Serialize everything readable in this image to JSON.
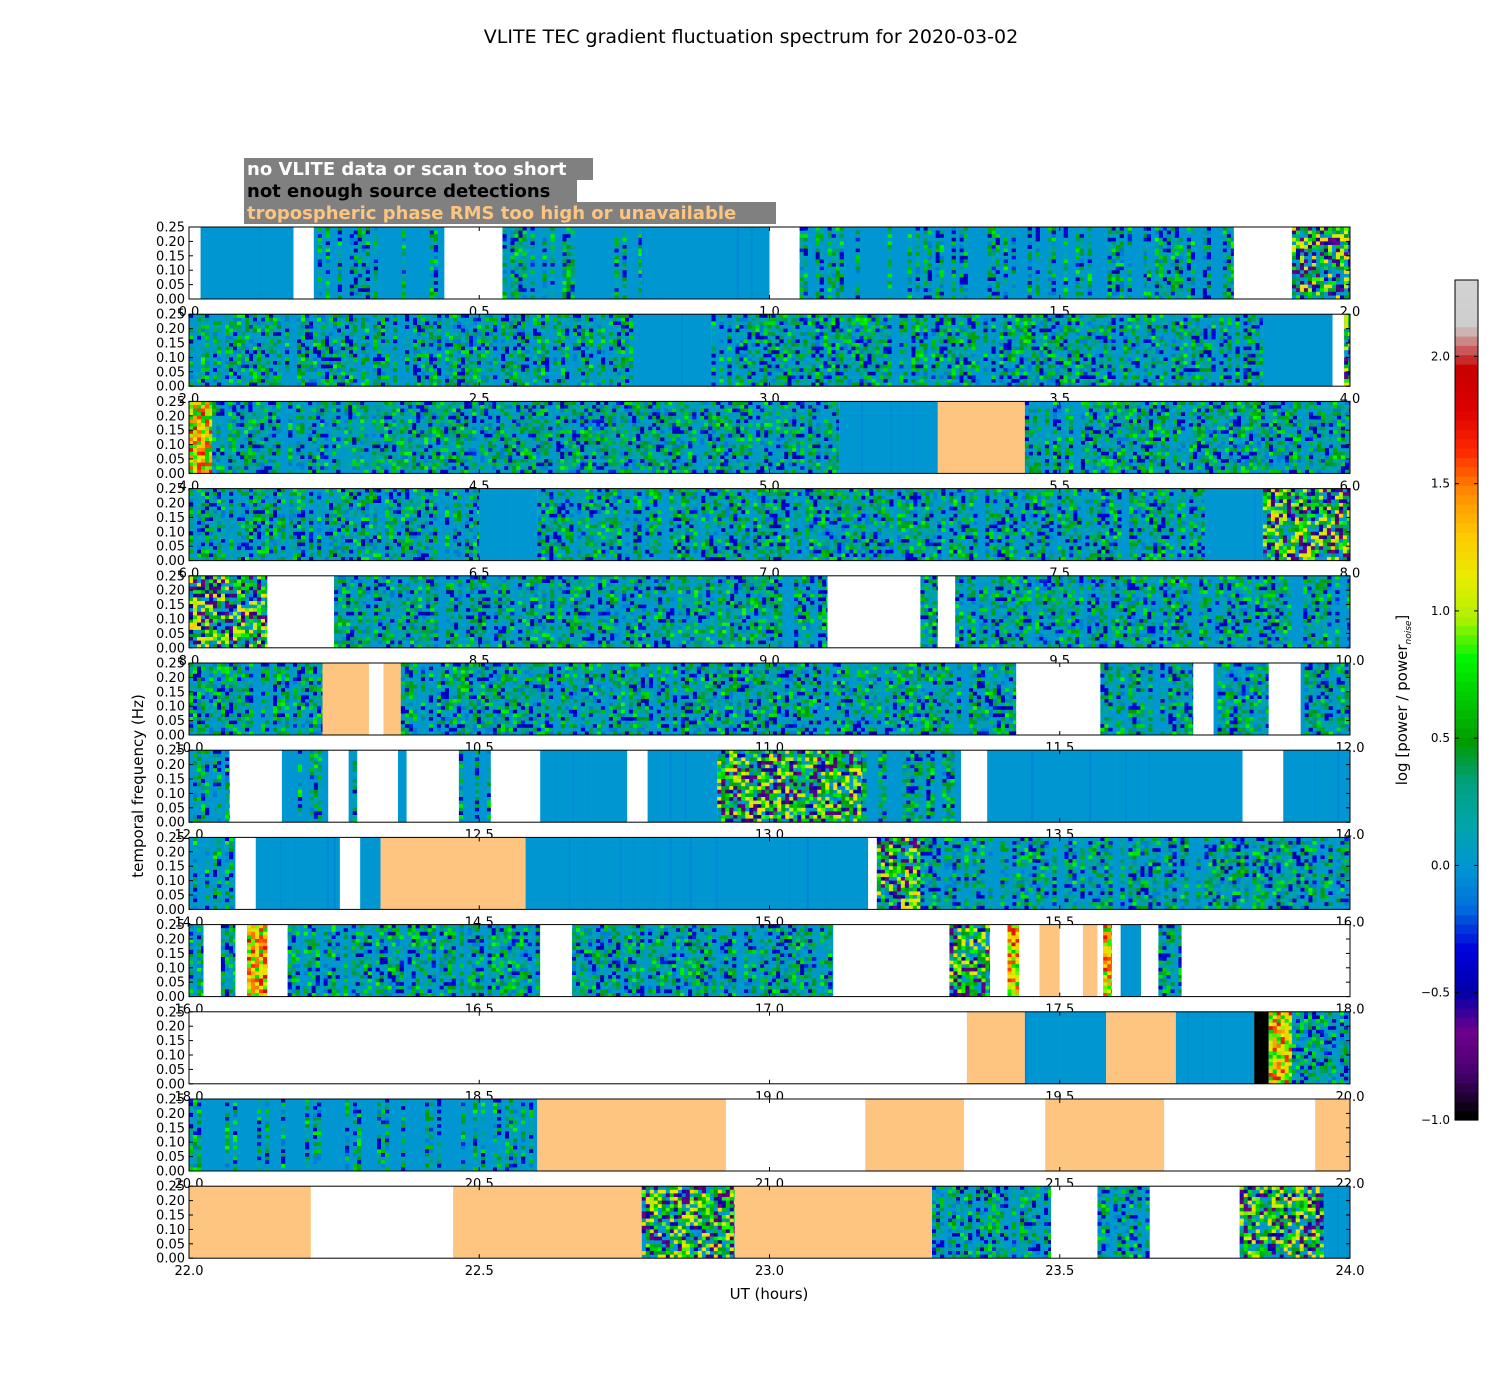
{
  "chart_data": {
    "type": "heatmap",
    "title": "VLITE TEC gradient fluctuation spectrum for 2020-03-02",
    "xlabel": "UT (hours)",
    "ylabel": "temporal frequency (Hz)",
    "ylim": [
      0,
      0.25
    ],
    "yticks": [
      "0.00",
      "0.05",
      "0.10",
      "0.15",
      "0.20",
      "0.25"
    ],
    "panel_hours": 2.0,
    "legend": {
      "placement": "top-left",
      "items": [
        {
          "key": "nodata",
          "label": "no VLITE data or scan too short",
          "text_color": "#ffffff",
          "box_color": "#808080"
        },
        {
          "key": "nodet",
          "label": "not enough source detections",
          "text_color": "#000000",
          "box_color": "#808080"
        },
        {
          "key": "tropo",
          "label": "tropospheric phase RMS too high or unavailable",
          "text_color": "#fdc57f",
          "box_color": "#808080"
        }
      ]
    },
    "colorbar": {
      "label": "log [power / power",
      "label_subscript": "noise",
      "label_close": "]",
      "min": -1.0,
      "max": 2.3,
      "ticks": [
        "−1.0",
        "−0.5",
        "0.0",
        "0.5",
        "1.0",
        "1.5",
        "2.0"
      ],
      "tick_values": [
        -1.0,
        -0.5,
        0.0,
        0.5,
        1.0,
        1.5,
        2.0
      ],
      "colormap": "nipy_spectral"
    },
    "status_colors": {
      "nodata": "#ffffff",
      "tropo": "#fdc57f",
      "nodet": "#000000",
      "quiet": "#0096d2"
    },
    "panels": [
      {
        "start": 0,
        "end": 2,
        "xticks": [
          "0.0",
          "0.5",
          "1.0",
          "1.5",
          "2.0"
        ],
        "segments": [
          [
            0.0,
            0.02,
            "nodata"
          ],
          [
            0.02,
            0.18,
            "quiet"
          ],
          [
            0.18,
            0.215,
            "nodata"
          ],
          [
            0.215,
            0.44,
            "mixq"
          ],
          [
            0.44,
            0.54,
            "nodata"
          ],
          [
            0.54,
            0.78,
            "mixq"
          ],
          [
            0.78,
            1.0,
            "quiet"
          ],
          [
            1.0,
            1.052,
            "nodata"
          ],
          [
            1.052,
            1.65,
            "mixq"
          ],
          [
            1.65,
            1.8,
            "mixq"
          ],
          [
            1.8,
            1.9,
            "nodata"
          ],
          [
            1.9,
            2.0,
            "active"
          ]
        ]
      },
      {
        "start": 2,
        "end": 4,
        "xticks": [
          "2.0",
          "2.5",
          "3.0",
          "3.5",
          "4.0"
        ],
        "segments": [
          [
            0.0,
            0.77,
            "mix"
          ],
          [
            0.77,
            0.9,
            "quiet"
          ],
          [
            0.9,
            1.85,
            "mix"
          ],
          [
            1.85,
            1.97,
            "quiet"
          ],
          [
            1.97,
            1.99,
            "nodata"
          ],
          [
            1.99,
            2.0,
            "active"
          ]
        ]
      },
      {
        "start": 4,
        "end": 6,
        "xticks": [
          "4.0",
          "4.5",
          "5.0",
          "5.5",
          "6.0"
        ],
        "segments": [
          [
            0.0,
            0.04,
            "hot"
          ],
          [
            0.04,
            1.12,
            "mix"
          ],
          [
            1.12,
            1.29,
            "quiet"
          ],
          [
            1.29,
            1.44,
            "tropo"
          ],
          [
            1.44,
            2.0,
            "mix"
          ]
        ]
      },
      {
        "start": 6,
        "end": 8,
        "xticks": [
          "6.0",
          "6.5",
          "7.0",
          "7.5",
          "8.0"
        ],
        "segments": [
          [
            0.0,
            0.5,
            "mix"
          ],
          [
            0.5,
            0.6,
            "quiet"
          ],
          [
            0.6,
            1.75,
            "mix"
          ],
          [
            1.75,
            1.85,
            "quiet"
          ],
          [
            1.85,
            2.0,
            "active"
          ]
        ]
      },
      {
        "start": 8,
        "end": 10,
        "xticks": [
          "8.0",
          "8.5",
          "9.0",
          "9.5",
          "10.0"
        ],
        "segments": [
          [
            0.0,
            0.135,
            "active"
          ],
          [
            0.135,
            0.25,
            "nodata"
          ],
          [
            0.25,
            1.1,
            "mix"
          ],
          [
            1.1,
            1.26,
            "nodata"
          ],
          [
            1.26,
            1.29,
            "mix"
          ],
          [
            1.29,
            1.32,
            "nodata"
          ],
          [
            1.32,
            2.0,
            "mix"
          ]
        ]
      },
      {
        "start": 10,
        "end": 12,
        "xticks": [
          "10.0",
          "10.5",
          "11.0",
          "11.5",
          "12.0"
        ],
        "segments": [
          [
            0.0,
            0.23,
            "mix"
          ],
          [
            0.23,
            0.31,
            "tropo"
          ],
          [
            0.31,
            0.335,
            "nodata"
          ],
          [
            0.335,
            0.365,
            "tropo"
          ],
          [
            0.365,
            1.425,
            "mix"
          ],
          [
            1.425,
            1.57,
            "nodata"
          ],
          [
            1.57,
            1.73,
            "mix"
          ],
          [
            1.73,
            1.765,
            "nodata"
          ],
          [
            1.765,
            1.86,
            "mix"
          ],
          [
            1.86,
            1.915,
            "nodata"
          ],
          [
            1.915,
            2.0,
            "mix"
          ]
        ]
      },
      {
        "start": 12,
        "end": 14,
        "xticks": [
          "12.0",
          "12.5",
          "13.0",
          "13.5",
          "14.0"
        ],
        "segments": [
          [
            0.0,
            0.07,
            "mixq"
          ],
          [
            0.07,
            0.16,
            "nodata"
          ],
          [
            0.16,
            0.24,
            "mixq"
          ],
          [
            0.24,
            0.275,
            "nodata"
          ],
          [
            0.275,
            0.29,
            "mixq"
          ],
          [
            0.29,
            0.36,
            "nodata"
          ],
          [
            0.36,
            0.375,
            "mixq"
          ],
          [
            0.375,
            0.465,
            "nodata"
          ],
          [
            0.465,
            0.52,
            "mixq"
          ],
          [
            0.52,
            0.605,
            "nodata"
          ],
          [
            0.605,
            0.755,
            "quiet"
          ],
          [
            0.755,
            0.79,
            "nodata"
          ],
          [
            0.79,
            0.91,
            "quiet"
          ],
          [
            0.91,
            1.16,
            "active"
          ],
          [
            1.16,
            1.33,
            "mixq"
          ],
          [
            1.33,
            1.375,
            "nodata"
          ],
          [
            1.375,
            1.815,
            "quiet"
          ],
          [
            1.815,
            1.885,
            "nodata"
          ],
          [
            1.885,
            2.0,
            "quiet"
          ]
        ]
      },
      {
        "start": 14,
        "end": 16,
        "xticks": [
          "14.0",
          "14.5",
          "15.0",
          "15.5",
          "16.0"
        ],
        "segments": [
          [
            0.0,
            0.08,
            "mixq"
          ],
          [
            0.08,
            0.115,
            "nodata"
          ],
          [
            0.115,
            0.26,
            "quiet"
          ],
          [
            0.26,
            0.295,
            "nodata"
          ],
          [
            0.295,
            0.33,
            "quiet"
          ],
          [
            0.33,
            0.58,
            "tropo"
          ],
          [
            0.58,
            1.17,
            "quiet"
          ],
          [
            1.17,
            1.185,
            "nodata"
          ],
          [
            1.185,
            1.26,
            "active"
          ],
          [
            1.26,
            2.0,
            "mix"
          ]
        ]
      },
      {
        "start": 16,
        "end": 18,
        "xticks": [
          "16.0",
          "16.5",
          "17.0",
          "17.5",
          "18.0"
        ],
        "segments": [
          [
            0.0,
            0.025,
            "mix"
          ],
          [
            0.025,
            0.055,
            "nodata"
          ],
          [
            0.055,
            0.08,
            "mix"
          ],
          [
            0.08,
            0.1,
            "nodata"
          ],
          [
            0.1,
            0.135,
            "hot"
          ],
          [
            0.135,
            0.17,
            "nodata"
          ],
          [
            0.17,
            0.605,
            "mix"
          ],
          [
            0.605,
            0.66,
            "nodata"
          ],
          [
            0.66,
            1.11,
            "mix"
          ],
          [
            1.11,
            1.31,
            "nodata"
          ],
          [
            1.31,
            1.38,
            "active"
          ],
          [
            1.38,
            1.41,
            "nodata"
          ],
          [
            1.41,
            1.43,
            "hot"
          ],
          [
            1.43,
            1.465,
            "nodata"
          ],
          [
            1.465,
            1.5,
            "tropo"
          ],
          [
            1.5,
            1.54,
            "nodata"
          ],
          [
            1.54,
            1.565,
            "tropo"
          ],
          [
            1.565,
            1.575,
            "nodata"
          ],
          [
            1.575,
            1.59,
            "hot"
          ],
          [
            1.59,
            1.605,
            "nodata"
          ],
          [
            1.605,
            1.64,
            "quiet"
          ],
          [
            1.64,
            1.67,
            "nodata"
          ],
          [
            1.67,
            1.71,
            "mix"
          ],
          [
            1.71,
            2.0,
            "nodata"
          ]
        ]
      },
      {
        "start": 18,
        "end": 20,
        "xticks": [
          "18.0",
          "18.5",
          "19.0",
          "19.5",
          "20.0"
        ],
        "segments": [
          [
            0.0,
            1.34,
            "nodata"
          ],
          [
            1.34,
            1.44,
            "tropo"
          ],
          [
            1.44,
            1.58,
            "quiet"
          ],
          [
            1.58,
            1.7,
            "tropo"
          ],
          [
            1.7,
            1.835,
            "quiet"
          ],
          [
            1.835,
            1.86,
            "nodet"
          ],
          [
            1.86,
            1.9,
            "hot"
          ],
          [
            1.9,
            2.0,
            "mix"
          ]
        ]
      },
      {
        "start": 20,
        "end": 22,
        "xticks": [
          "20.0",
          "20.5",
          "21.0",
          "21.5",
          "22.0"
        ],
        "segments": [
          [
            0.0,
            0.6,
            "mixq"
          ],
          [
            0.6,
            0.925,
            "tropo"
          ],
          [
            0.925,
            1.165,
            "nodata"
          ],
          [
            1.165,
            1.335,
            "tropo"
          ],
          [
            1.335,
            1.475,
            "nodata"
          ],
          [
            1.475,
            1.68,
            "tropo"
          ],
          [
            1.68,
            1.94,
            "nodata"
          ],
          [
            1.94,
            2.0,
            "tropo"
          ]
        ]
      },
      {
        "start": 22,
        "end": 24,
        "xticks": [
          "22.0",
          "22.5",
          "23.0",
          "23.5",
          "24.0"
        ],
        "segments": [
          [
            0.0,
            0.21,
            "tropo"
          ],
          [
            0.21,
            0.455,
            "nodata"
          ],
          [
            0.455,
            0.78,
            "tropo"
          ],
          [
            0.78,
            0.94,
            "active"
          ],
          [
            0.94,
            1.28,
            "tropo"
          ],
          [
            1.28,
            1.485,
            "mix"
          ],
          [
            1.485,
            1.565,
            "nodata"
          ],
          [
            1.565,
            1.655,
            "mix"
          ],
          [
            1.655,
            1.81,
            "nodata"
          ],
          [
            1.81,
            1.955,
            "active"
          ],
          [
            1.955,
            2.0,
            "quiet"
          ]
        ]
      }
    ]
  }
}
